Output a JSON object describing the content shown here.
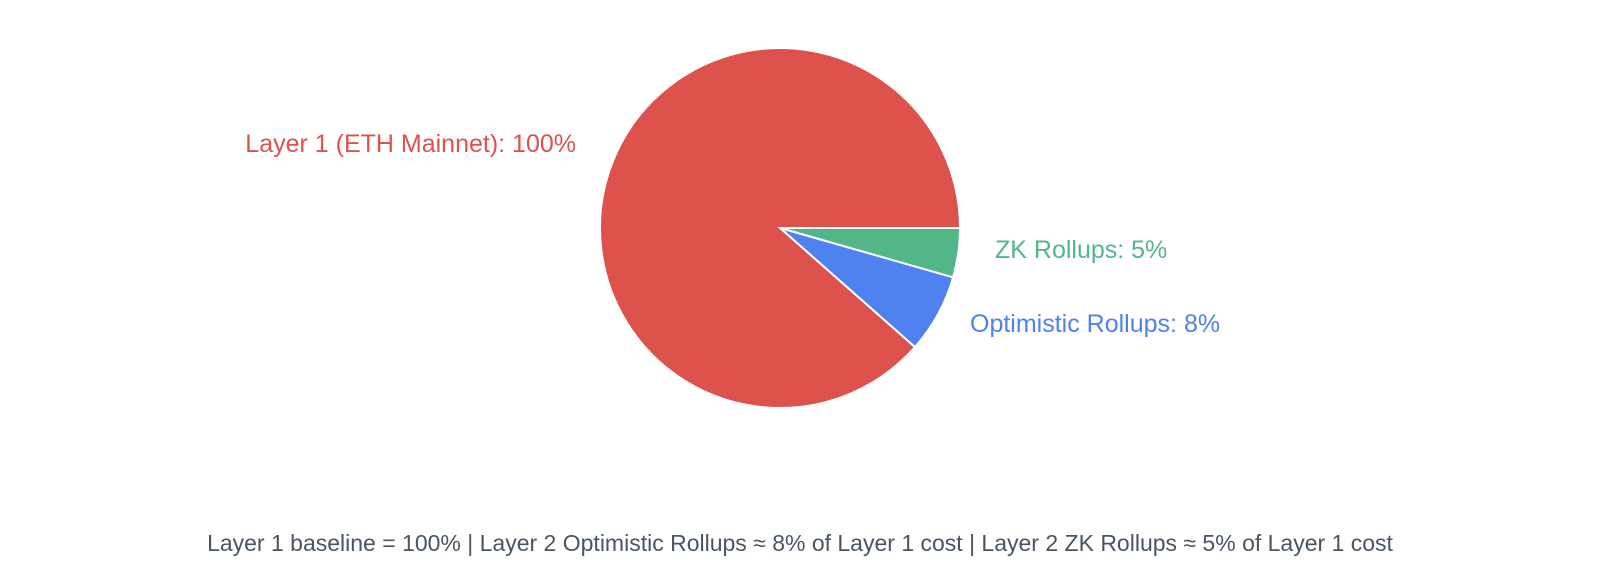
{
  "chart_data": {
    "type": "pie",
    "title": "",
    "slices": [
      {
        "label": "Layer 1 (ETH Mainnet): 100%",
        "value": 100,
        "color": "#de524d"
      },
      {
        "label": "ZK Rollups: 5%",
        "value": 5,
        "color": "#52b788"
      },
      {
        "label": "Optimistic Rollups: 8%",
        "value": 8,
        "color": "#4f81ef"
      }
    ],
    "footnote": "Layer 1 baseline = 100% | Layer 2 Optimistic Rollups ≈ 8% of Layer 1 cost | Layer 2 ZK Rollups ≈ 5% of Layer 1 cost"
  }
}
